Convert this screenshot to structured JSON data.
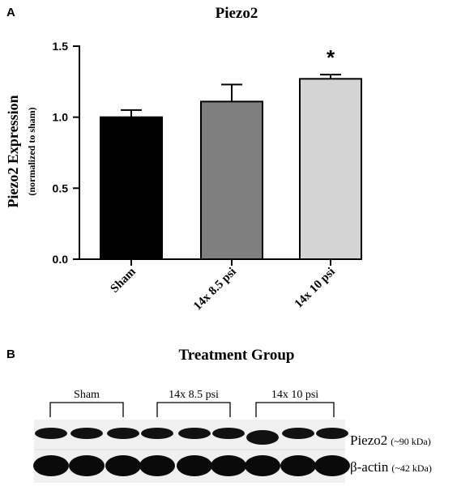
{
  "panels": {
    "a_label": "A",
    "b_label": "B"
  },
  "chart_data": {
    "type": "bar",
    "title": "Piezo2",
    "ylabel": "Piezo2  Expression",
    "ylabel_sub": "(normalized to sham)",
    "xlabel": "Treatment Group",
    "categories": [
      "Sham",
      "14x 8.5 psi",
      "14x 10 psi"
    ],
    "values": [
      1.0,
      1.11,
      1.27
    ],
    "errors": [
      0.05,
      0.12,
      0.03
    ],
    "bar_colors": [
      "#000000",
      "#7f7f7f",
      "#d4d4d4"
    ],
    "ylim": [
      0,
      1.5
    ],
    "yticks": [
      "0.0",
      "0.5",
      "1.0",
      "1.5"
    ],
    "significance": [
      "",
      "",
      "*"
    ],
    "grid": false
  },
  "blot": {
    "group_labels": [
      "Sham",
      "14x 8.5 psi",
      "14x 10 psi"
    ],
    "lanes_per_group": 3,
    "rows": [
      {
        "protein": "Piezo2",
        "size": "(~90 kDa)"
      },
      {
        "protein": "β-actin",
        "size": "(~42 kDa)"
      }
    ]
  }
}
